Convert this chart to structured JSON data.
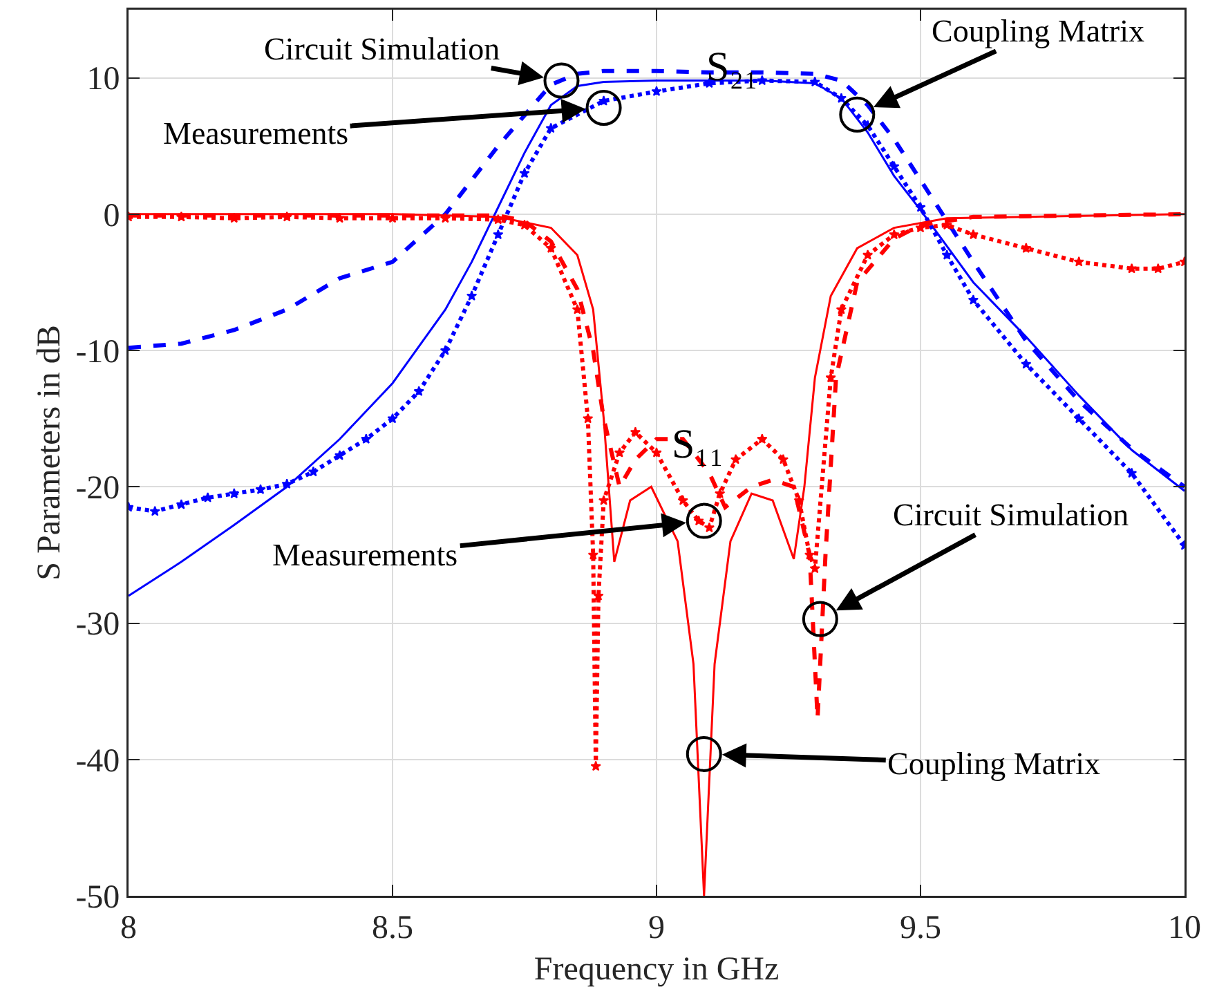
{
  "chart_data": {
    "type": "line",
    "xlabel": "Frequency in GHz",
    "ylabel": "S Parameters in dB",
    "xlim": [
      8,
      10
    ],
    "ylim": [
      -50,
      15
    ],
    "xticks": [
      8,
      8.5,
      9,
      9.5,
      10
    ],
    "yticks": [
      -50,
      -40,
      -30,
      -20,
      -10,
      0,
      10
    ],
    "grid": true,
    "series": [
      {
        "color": "#0000ff",
        "line_style": "solid",
        "marker": "none",
        "x": [
          8,
          8.1,
          8.2,
          8.3,
          8.4,
          8.5,
          8.6,
          8.65,
          8.7,
          8.75,
          8.8,
          8.85,
          8.9,
          9.0,
          9.1,
          9.2,
          9.3,
          9.35,
          9.4,
          9.45,
          9.5,
          9.6,
          9.7,
          9.8,
          9.9,
          10
        ],
        "values": [
          -28,
          -25.5,
          -22.8,
          -20,
          -16.5,
          -12.4,
          -7,
          -3.5,
          0.5,
          4.5,
          8,
          9.4,
          9.7,
          9.8,
          9.8,
          9.8,
          9.6,
          8.5,
          6,
          2.8,
          0.3,
          -5,
          -9,
          -13.3,
          -17.3,
          -20.3
        ]
      },
      {
        "color": "#0000ff",
        "line_style": "dashed",
        "marker": "none",
        "x": [
          8,
          8.1,
          8.2,
          8.3,
          8.4,
          8.5,
          8.6,
          8.7,
          8.8,
          8.85,
          8.9,
          9.0,
          9.1,
          9.2,
          9.3,
          9.35,
          9.4,
          9.45,
          9.5,
          9.55,
          9.6,
          9.7,
          9.8,
          9.9,
          10
        ],
        "values": [
          -9.8,
          -9.5,
          -8.5,
          -7,
          -4.7,
          -3.5,
          0,
          5,
          9.5,
          10.3,
          10.5,
          10.5,
          10.4,
          10.4,
          10.3,
          9.8,
          8,
          5.5,
          2.5,
          -0.5,
          -3.5,
          -9.3,
          -13.7,
          -17.2,
          -20
        ]
      },
      {
        "color": "#0000ff",
        "line_style": "dotted",
        "marker": "star",
        "x": [
          8,
          8.05,
          8.1,
          8.15,
          8.2,
          8.25,
          8.3,
          8.35,
          8.4,
          8.45,
          8.5,
          8.55,
          8.6,
          8.65,
          8.7,
          8.75,
          8.8,
          8.9,
          9.0,
          9.1,
          9.2,
          9.3,
          9.35,
          9.4,
          9.45,
          9.5,
          9.55,
          9.6,
          9.7,
          9.8,
          9.9,
          10
        ],
        "values": [
          -21.5,
          -21.8,
          -21.3,
          -20.8,
          -20.5,
          -20.2,
          -19.8,
          -18.9,
          -17.7,
          -16.5,
          -15,
          -13,
          -10,
          -6,
          -1.5,
          3,
          6.3,
          8.3,
          9,
          9.6,
          9.8,
          9.7,
          8.5,
          6.5,
          3.5,
          0.5,
          -3,
          -6.3,
          -11,
          -15,
          -19,
          -24.3
        ]
      },
      {
        "color": "#ff0000",
        "line_style": "solid",
        "marker": "none",
        "x": [
          8,
          8.5,
          8.7,
          8.8,
          8.85,
          8.88,
          8.9,
          8.92,
          8.95,
          8.99,
          9.04,
          9.07,
          9.09,
          9.11,
          9.14,
          9.18,
          9.22,
          9.26,
          9.28,
          9.3,
          9.33,
          9.38,
          9.45,
          9.55,
          10
        ],
        "values": [
          0,
          0,
          -0.2,
          -1,
          -3,
          -7,
          -15,
          -25.5,
          -21,
          -20,
          -24,
          -33,
          -50,
          -33,
          -24,
          -20.5,
          -21,
          -25.3,
          -20,
          -12,
          -6,
          -2.5,
          -1,
          -0.3,
          0
        ]
      },
      {
        "color": "#ff0000",
        "line_style": "dashed",
        "marker": "none",
        "x": [
          8,
          8.5,
          8.7,
          8.75,
          8.8,
          8.85,
          8.88,
          8.9,
          8.93,
          8.96,
          9.0,
          9.05,
          9.1,
          9.13,
          9.18,
          9.22,
          9.26,
          9.29,
          9.305,
          9.32,
          9.34,
          9.38,
          9.45,
          9.5,
          9.6,
          10
        ],
        "values": [
          -0.1,
          -0.1,
          -0.1,
          -0.5,
          -2,
          -5.5,
          -10,
          -15,
          -20,
          -18,
          -16.5,
          -16.5,
          -19,
          -21.5,
          -20,
          -19.5,
          -20,
          -25,
          -37,
          -25,
          -12,
          -5,
          -1.8,
          -0.8,
          -0.2,
          0
        ]
      },
      {
        "color": "#ff0000",
        "line_style": "dotted",
        "marker": "star",
        "x": [
          8,
          8.1,
          8.2,
          8.3,
          8.4,
          8.5,
          8.6,
          8.7,
          8.75,
          8.8,
          8.85,
          8.87,
          8.88,
          8.885,
          8.89,
          8.9,
          8.93,
          8.96,
          9.0,
          9.05,
          9.08,
          9.1,
          9.12,
          9.15,
          9.2,
          9.24,
          9.27,
          9.29,
          9.3,
          9.33,
          9.35,
          9.4,
          9.45,
          9.5,
          9.55,
          9.6,
          9.7,
          9.8,
          9.9,
          9.95,
          10
        ],
        "values": [
          -0.2,
          -0.2,
          -0.3,
          -0.2,
          -0.3,
          -0.3,
          -0.3,
          -0.4,
          -0.8,
          -2.5,
          -7,
          -15,
          -25,
          -40.5,
          -28,
          -21,
          -17.5,
          -16,
          -17.5,
          -21,
          -22.5,
          -23,
          -20.5,
          -18,
          -16.5,
          -18,
          -21,
          -25,
          -26,
          -12,
          -7,
          -3,
          -1.5,
          -1,
          -0.8,
          -1.5,
          -2.5,
          -3.5,
          -4,
          -4,
          -3.5
        ]
      }
    ],
    "annotations": [
      {
        "text": "Circuit Simulation",
        "x": 8.82,
        "y": 9.8
      },
      {
        "text": "Measurements",
        "x": 8.9,
        "y": 7.8
      },
      {
        "text": "Coupling Matrix",
        "x": 9.38,
        "y": 7.3
      },
      "S₂₁",
      "S₁₁",
      {
        "text": "Measurements",
        "x": 9.09,
        "y": -22.5
      },
      {
        "text": "Circuit Simulation",
        "x": 9.31,
        "y": -29.7
      },
      {
        "text": "Coupling Matrix",
        "x": 9.09,
        "y": -39.6
      }
    ]
  }
}
